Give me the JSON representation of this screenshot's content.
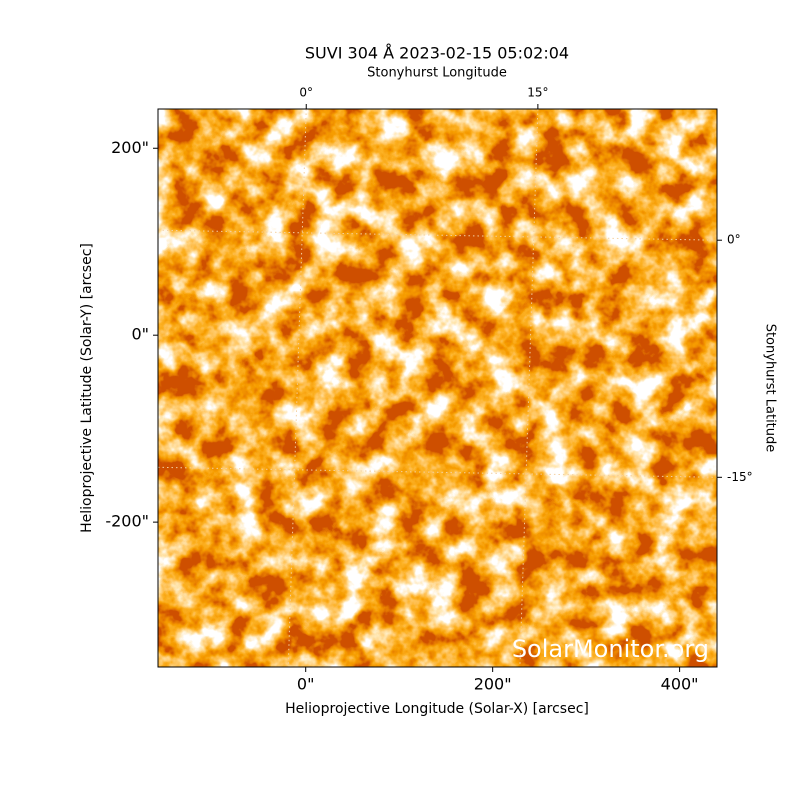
{
  "chart_data": {
    "type": "image",
    "title": "SUVI 304 Å 2023-02-15 05:02:04",
    "xlabel": "Helioprojective Longitude (Solar-X) [arcsec]",
    "ylabel": "Helioprojective Latitude (Solar-Y) [arcsec]",
    "x2label": "Stonyhurst Longitude",
    "y2label": "Stonyhurst Latitude",
    "watermark": "SolarMonitor.org",
    "xlim": [
      -158,
      440
    ],
    "ylim": [
      -355,
      242
    ],
    "xticks": [
      {
        "value": 0,
        "label": "0\""
      },
      {
        "value": 200,
        "label": "200\""
      },
      {
        "value": 400,
        "label": "400\""
      }
    ],
    "yticks": [
      {
        "value": -200,
        "label": "-200\""
      },
      {
        "value": 0,
        "label": "0\""
      },
      {
        "value": 200,
        "label": "200\""
      }
    ],
    "x2lim": [
      -9.6,
      26.6
    ],
    "x2ticks": [
      {
        "value": 0,
        "label": "0°"
      },
      {
        "value": 15,
        "label": "15°"
      }
    ],
    "y2lim": [
      -27,
      8.3
    ],
    "y2ticks": [
      {
        "value": -15,
        "label": "-15°"
      },
      {
        "value": 0,
        "label": "0°"
      }
    ],
    "grid": true
  }
}
